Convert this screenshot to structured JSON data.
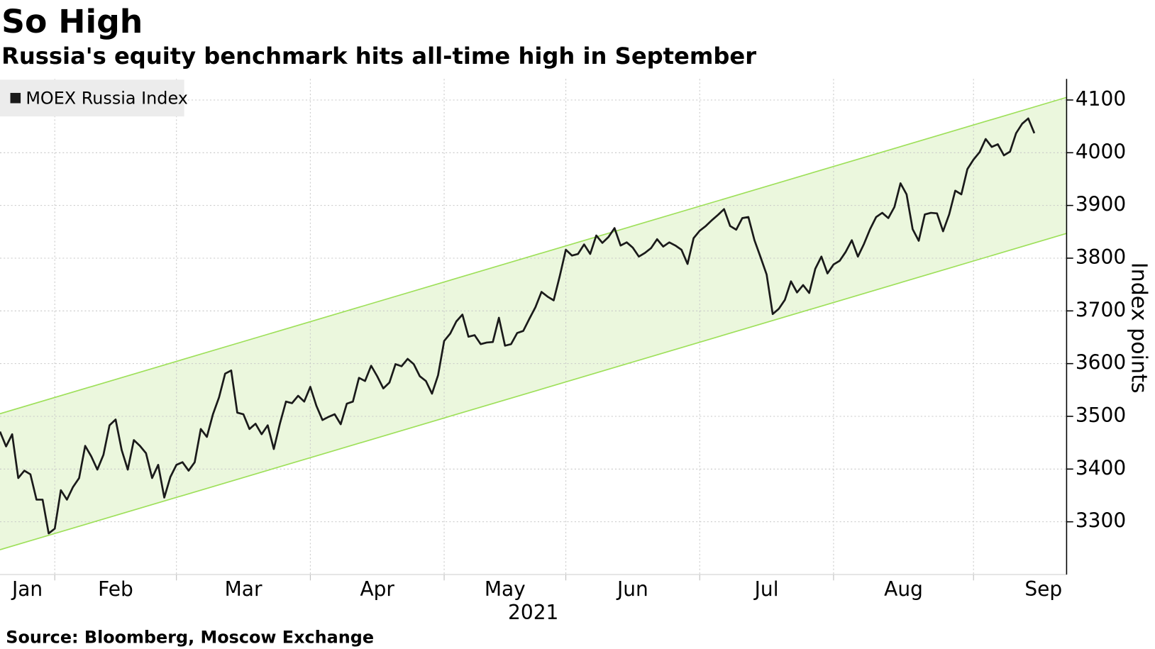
{
  "chart_data": {
    "type": "line",
    "title": "So High",
    "subtitle": "Russia's equity benchmark hits all-time high in September",
    "source": "Source: Bloomberg, Moscow Exchange",
    "xlabel": "2021",
    "ylabel": "Index points",
    "legend": "top-left",
    "grid": true,
    "ylim": [
      3200,
      4140
    ],
    "yticks": [
      3300,
      3400,
      3500,
      3600,
      3700,
      3800,
      3900,
      4000,
      4100
    ],
    "channel": {
      "upper": [
        3505,
        4105
      ],
      "lower": [
        3247,
        3847
      ],
      "color": "#9ee05a",
      "fill": "#ebf7dd"
    },
    "categories": [
      "Jan",
      null,
      null,
      null,
      null,
      null,
      null,
      null,
      null,
      "Feb",
      null,
      null,
      null,
      null,
      null,
      null,
      null,
      null,
      null,
      null,
      null,
      null,
      null,
      null,
      null,
      null,
      null,
      null,
      null,
      "Mar",
      null,
      null,
      null,
      null,
      null,
      null,
      null,
      null,
      null,
      null,
      null,
      null,
      null,
      null,
      null,
      null,
      null,
      null,
      null,
      null,
      null,
      "Apr",
      null,
      null,
      null,
      null,
      null,
      null,
      null,
      null,
      null,
      null,
      null,
      null,
      null,
      null,
      null,
      null,
      null,
      null,
      null,
      null,
      null,
      "May",
      null,
      null,
      null,
      null,
      null,
      null,
      null,
      null,
      null,
      null,
      null,
      null,
      null,
      null,
      null,
      null,
      null,
      null,
      null,
      "Jun",
      null,
      null,
      null,
      null,
      null,
      null,
      null,
      null,
      null,
      null,
      null,
      null,
      null,
      null,
      null,
      null,
      null,
      null,
      null,
      null,
      null,
      "Jul",
      null,
      null,
      null,
      null,
      null,
      null,
      null,
      null,
      null,
      null,
      null,
      null,
      null,
      null,
      null,
      null,
      null,
      null,
      null,
      null,
      null,
      "Aug",
      null,
      null,
      null,
      null,
      null,
      null,
      null,
      null,
      null,
      null,
      null,
      null,
      null,
      null,
      null,
      null,
      null,
      null,
      null,
      null,
      null,
      null,
      "Sep",
      null,
      null,
      null,
      null,
      null,
      null,
      null,
      null,
      null,
      null
    ],
    "series": [
      {
        "name": "MOEX Russia Index",
        "color": "#1a1a1a",
        "values": [
          3471,
          3443,
          3466,
          3383,
          3397,
          3390,
          3342,
          3342,
          3278,
          3287,
          3360,
          3342,
          3366,
          3383,
          3444,
          3424,
          3399,
          3427,
          3483,
          3494,
          3436,
          3399,
          3455,
          3444,
          3430,
          3383,
          3408,
          3346,
          3385,
          3408,
          3413,
          3397,
          3413,
          3476,
          3461,
          3504,
          3536,
          3581,
          3587,
          3507,
          3504,
          3476,
          3486,
          3466,
          3483,
          3438,
          3486,
          3528,
          3525,
          3539,
          3528,
          3556,
          3520,
          3493,
          3499,
          3504,
          3485,
          3524,
          3528,
          3573,
          3567,
          3596,
          3576,
          3553,
          3564,
          3599,
          3595,
          3609,
          3599,
          3576,
          3567,
          3543,
          3578,
          3643,
          3657,
          3680,
          3693,
          3651,
          3654,
          3637,
          3640,
          3641,
          3687,
          3634,
          3637,
          3658,
          3662,
          3685,
          3707,
          3736,
          3727,
          3720,
          3766,
          3816,
          3805,
          3808,
          3826,
          3808,
          3843,
          3829,
          3840,
          3857,
          3824,
          3830,
          3820,
          3803,
          3810,
          3819,
          3836,
          3822,
          3830,
          3824,
          3816,
          3789,
          3838,
          3852,
          3861,
          3872,
          3882,
          3893,
          3861,
          3854,
          3876,
          3878,
          3834,
          3802,
          3769,
          3694,
          3704,
          3721,
          3756,
          3735,
          3749,
          3734,
          3780,
          3803,
          3771,
          3788,
          3795,
          3812,
          3834,
          3803,
          3827,
          3855,
          3878,
          3886,
          3876,
          3897,
          3942,
          3921,
          3855,
          3833,
          3883,
          3886,
          3885,
          3851,
          3883,
          3928,
          3921,
          3969,
          3987,
          4001,
          4026,
          4011,
          4016,
          3995,
          4002,
          4037,
          4055,
          4065,
          4037
        ]
      }
    ]
  }
}
